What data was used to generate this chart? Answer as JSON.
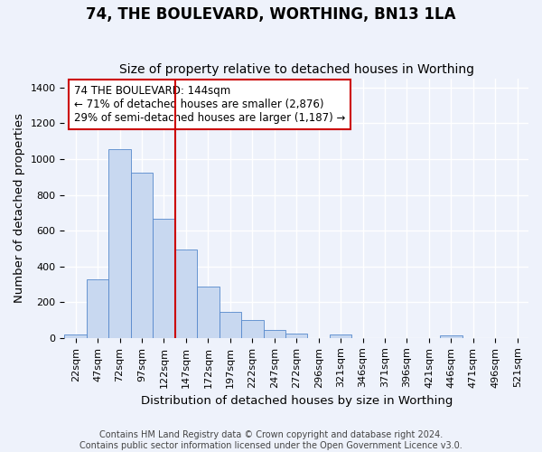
{
  "title": "74, THE BOULEVARD, WORTHING, BN13 1LA",
  "subtitle": "Size of property relative to detached houses in Worthing",
  "xlabel": "Distribution of detached houses by size in Worthing",
  "ylabel": "Number of detached properties",
  "bins": [
    "22sqm",
    "47sqm",
    "72sqm",
    "97sqm",
    "122sqm",
    "147sqm",
    "172sqm",
    "197sqm",
    "222sqm",
    "247sqm",
    "272sqm",
    "296sqm",
    "321sqm",
    "346sqm",
    "371sqm",
    "396sqm",
    "421sqm",
    "446sqm",
    "471sqm",
    "496sqm",
    "521sqm"
  ],
  "values": [
    20,
    328,
    1057,
    922,
    668,
    497,
    285,
    148,
    100,
    43,
    22,
    0,
    18,
    0,
    0,
    0,
    0,
    14,
    0,
    0,
    0
  ],
  "bar_color": "#c8d8f0",
  "bar_edge_color": "#5588cc",
  "bar_width": 1.0,
  "vline_x": 5,
  "vline_color": "#cc0000",
  "annotation_text": "74 THE BOULEVARD: 144sqm\n← 71% of detached houses are smaller (2,876)\n29% of semi-detached houses are larger (1,187) →",
  "annotation_box_facecolor": "#ffffff",
  "annotation_box_edgecolor": "#cc0000",
  "ylim": [
    0,
    1450
  ],
  "yticks": [
    0,
    200,
    400,
    600,
    800,
    1000,
    1200,
    1400
  ],
  "footer_text": "Contains HM Land Registry data © Crown copyright and database right 2024.\nContains public sector information licensed under the Open Government Licence v3.0.",
  "background_color": "#eef2fb",
  "grid_color": "#ffffff",
  "title_fontsize": 12,
  "subtitle_fontsize": 10,
  "label_fontsize": 9.5,
  "tick_fontsize": 8,
  "annotation_fontsize": 8.5,
  "footer_fontsize": 7
}
